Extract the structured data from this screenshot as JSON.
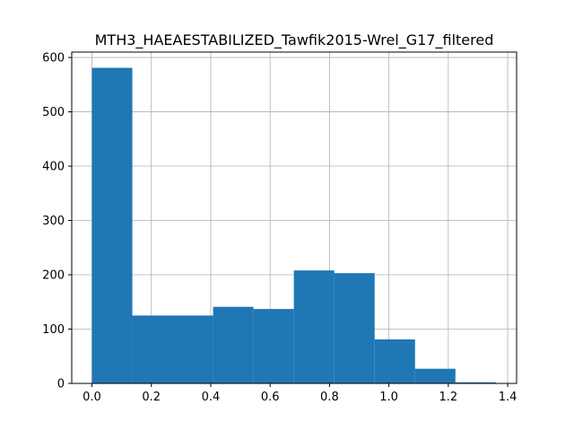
{
  "chart_data": {
    "type": "bar",
    "title": "MTH3_HAEAESTABILIZED_Tawfik2015-Wrel_G17_filtered",
    "xlabel": "",
    "ylabel": "",
    "xlim": [
      -0.068,
      1.43
    ],
    "ylim": [
      0,
      610
    ],
    "grid": true,
    "bar_color": "#1f77b4",
    "grid_color": "#b0b0b0",
    "x_ticks": [
      0.0,
      0.2,
      0.4,
      0.6,
      0.8,
      1.0,
      1.2,
      1.4
    ],
    "x_tick_labels": [
      "0.0",
      "0.2",
      "0.4",
      "0.6",
      "0.8",
      "1.0",
      "1.2",
      "1.4"
    ],
    "y_ticks": [
      0,
      100,
      200,
      300,
      400,
      500,
      600
    ],
    "y_tick_labels": [
      "0",
      "100",
      "200",
      "300",
      "400",
      "500",
      "600"
    ],
    "bins": [
      {
        "x0": 0.0,
        "x1": 0.136,
        "count": 581
      },
      {
        "x0": 0.136,
        "x1": 0.408,
        "count": 125
      },
      {
        "x0": 0.408,
        "x1": 0.544,
        "count": 141
      },
      {
        "x0": 0.544,
        "x1": 0.68,
        "count": 137
      },
      {
        "x0": 0.68,
        "x1": 0.816,
        "count": 208
      },
      {
        "x0": 0.816,
        "x1": 0.952,
        "count": 203
      },
      {
        "x0": 0.952,
        "x1": 1.088,
        "count": 81
      },
      {
        "x0": 1.088,
        "x1": 1.224,
        "count": 27
      },
      {
        "x0": 1.224,
        "x1": 1.36,
        "count": 2
      }
    ]
  }
}
